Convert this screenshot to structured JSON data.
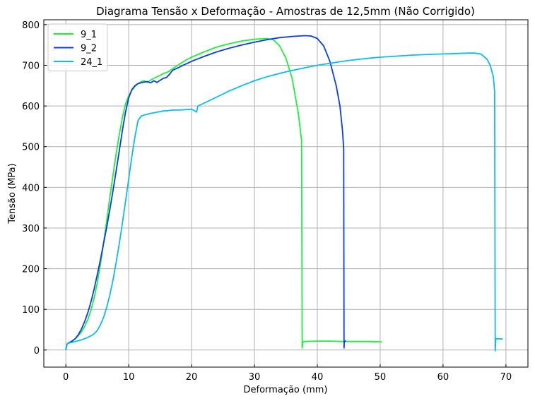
{
  "chart_data": {
    "type": "line",
    "title": "Diagrama Tensão x Deformação - Amostras de 12,5mm (Não Corrigido)",
    "xlabel": "Deformação (mm)",
    "ylabel": "Tensão (MPa)",
    "xlim": [
      -3.5,
      73.5
    ],
    "ylim": [
      -42,
      812
    ],
    "xticks": [
      0,
      10,
      20,
      30,
      40,
      50,
      60,
      70
    ],
    "yticks": [
      0,
      100,
      200,
      300,
      400,
      500,
      600,
      700,
      800
    ],
    "grid": true,
    "legend_position": "top-left",
    "series": [
      {
        "name": "9_1",
        "color": "#1ef03a",
        "x": [
          0,
          0.2,
          0.5,
          1,
          1.5,
          2,
          2.5,
          3,
          3.5,
          4,
          4.5,
          5,
          5.5,
          6,
          6.5,
          7,
          7.5,
          8,
          8.5,
          9,
          9.5,
          10,
          10.5,
          11,
          11.5,
          12,
          12.5,
          13,
          13.5,
          14,
          14.5,
          15,
          15.5,
          16,
          16.5,
          17,
          18,
          19,
          20,
          22,
          24,
          26,
          28,
          30,
          32,
          33,
          34,
          35,
          36,
          37,
          37.5,
          37.6,
          37.7,
          38,
          40,
          42,
          44,
          46,
          48,
          50.3
        ],
        "values": [
          0,
          15,
          18,
          22,
          28,
          35,
          45,
          58,
          75,
          98,
          128,
          165,
          210,
          262,
          318,
          375,
          430,
          482,
          530,
          572,
          605,
          625,
          638,
          648,
          655,
          660,
          662,
          658,
          664,
          668,
          672,
          675,
          680,
          682,
          686,
          692,
          702,
          712,
          720,
          733,
          745,
          753,
          760,
          764,
          766,
          763,
          748,
          718,
          668,
          580,
          515,
          5,
          20,
          21,
          22,
          22,
          21,
          21,
          21,
          20
        ]
      },
      {
        "name": "9_2",
        "color": "#0a3de6",
        "x": [
          0,
          0.2,
          0.5,
          1,
          1.5,
          2,
          2.5,
          3,
          3.5,
          4,
          4.5,
          5,
          5.5,
          6,
          6.5,
          7,
          7.5,
          8,
          8.5,
          9,
          9.5,
          10,
          10.5,
          11,
          11.5,
          12,
          12.5,
          13,
          13.5,
          14,
          14.5,
          15,
          15.5,
          16,
          16.5,
          17,
          18,
          20,
          22,
          24,
          26,
          28,
          30,
          32,
          34,
          36,
          38,
          39,
          40,
          41,
          42,
          43,
          43.6,
          44,
          44.2,
          44.25,
          44.3,
          44.6
        ],
        "values": [
          0,
          15,
          18,
          22,
          28,
          38,
          52,
          70,
          92,
          118,
          150,
          185,
          222,
          262,
          302,
          345,
          392,
          440,
          490,
          540,
          585,
          620,
          640,
          650,
          655,
          657,
          659,
          660,
          657,
          662,
          658,
          663,
          668,
          670,
          678,
          688,
          695,
          710,
          722,
          733,
          742,
          750,
          757,
          763,
          768,
          771,
          773,
          772,
          766,
          748,
          710,
          650,
          600,
          540,
          495,
          5,
          22,
          22
        ]
      },
      {
        "name": "24_1",
        "color": "#0abcf0",
        "x": [
          0,
          0.2,
          0.5,
          1,
          1.5,
          2,
          2.5,
          3,
          3.5,
          4,
          4.5,
          5,
          5.5,
          6,
          6.5,
          7,
          7.5,
          8,
          8.5,
          9,
          9.5,
          10,
          10.5,
          11,
          11.5,
          12,
          12.5,
          13,
          13.5,
          14,
          14.5,
          15,
          15.5,
          16,
          17,
          18,
          19,
          20,
          20.5,
          20.8,
          21,
          22,
          24,
          26,
          28,
          30,
          32,
          35,
          38,
          40,
          42,
          45,
          48,
          50,
          52,
          55,
          58,
          60,
          62,
          64,
          65,
          66,
          67,
          67.5,
          68,
          68.2,
          68.3,
          68.4,
          69.5
        ],
        "values": [
          0,
          15,
          17,
          19,
          21,
          23,
          25,
          28,
          31,
          35,
          40,
          48,
          62,
          80,
          105,
          135,
          172,
          215,
          262,
          312,
          365,
          420,
          475,
          525,
          565,
          575,
          578,
          580,
          582,
          583,
          585,
          586,
          588,
          588,
          590,
          590,
          591,
          592,
          588,
          585,
          600,
          607,
          622,
          637,
          650,
          662,
          672,
          684,
          694,
          700,
          705,
          712,
          717,
          720,
          722,
          725,
          727,
          728,
          729,
          730,
          730,
          728,
          715,
          700,
          672,
          635,
          -2,
          28,
          27
        ]
      }
    ]
  }
}
